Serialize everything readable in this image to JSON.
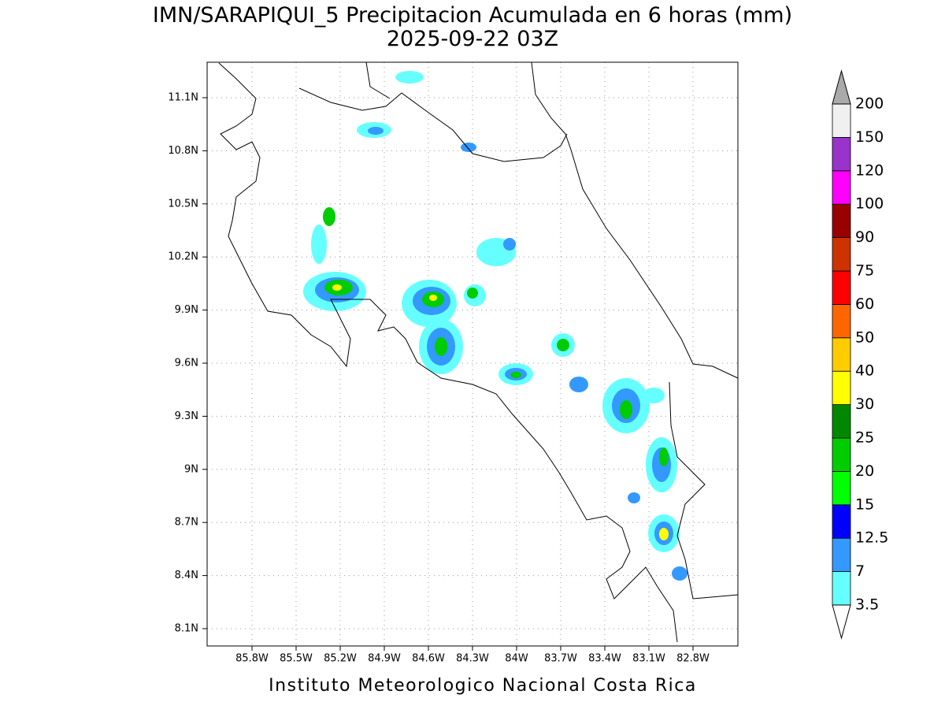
{
  "title": "IMN/SARAPIQUI_5 Precipitacion Acumulada en 6 horas (mm)",
  "subtitle": "2025-09-22 03Z",
  "footer": "Instituto Meteorologico Nacional Costa Rica",
  "map": {
    "lat_ticks": [
      "11.1N",
      "10.8N",
      "10.5N",
      "10.2N",
      "9.9N",
      "9.6N",
      "9.3N",
      "9N",
      "8.7N",
      "8.4N",
      "8.1N"
    ],
    "lon_ticks": [
      "85.8W",
      "85.5W",
      "85.2W",
      "84.9W",
      "84.6W",
      "84.3W",
      "84W",
      "83.7W",
      "83.4W",
      "83.1W",
      "82.8W"
    ]
  },
  "colorbar": {
    "labels": [
      "3.5",
      "7",
      "12.5",
      "15",
      "20",
      "25",
      "30",
      "40",
      "50",
      "60",
      "75",
      "90",
      "100",
      "120",
      "150",
      "200"
    ],
    "colors": [
      "#66ffff",
      "#3399ff",
      "#0000ff",
      "#00ff00",
      "#00cc00",
      "#008800",
      "#ffff00",
      "#ffcc00",
      "#ff6600",
      "#ff0000",
      "#cc3300",
      "#990000",
      "#ff00ff",
      "#9933cc",
      "#f0f0f0"
    ],
    "over_color": "#aaaaaa",
    "under_color": "#ffffff"
  }
}
